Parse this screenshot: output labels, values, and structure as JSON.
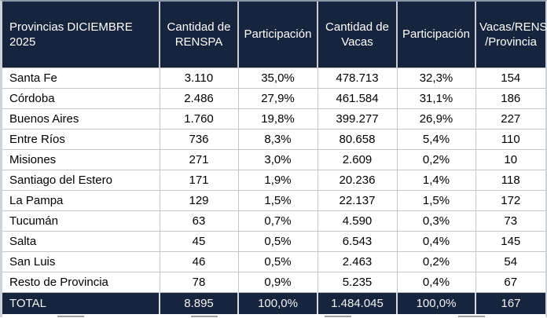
{
  "chart_data": {
    "type": "table",
    "title": "Provincias DICIEMBRE 2025",
    "columns": [
      "Provincias DICIEMBRE 2025",
      "Cantidad de RENSPA",
      "Participación",
      "Cantidad de Vacas",
      "Participación",
      "Vacas/RENSPA /Provincia"
    ],
    "rows": [
      [
        "Santa Fe",
        "3.110",
        "35,0%",
        "478.713",
        "32,3%",
        "154"
      ],
      [
        "Córdoba",
        "2.486",
        "27,9%",
        "461.584",
        "31,1%",
        "186"
      ],
      [
        "Buenos Aires",
        "1.760",
        "19,8%",
        "399.277",
        "26,9%",
        "227"
      ],
      [
        "Entre Ríos",
        "736",
        "8,3%",
        "80.658",
        "5,4%",
        "110"
      ],
      [
        "Misiones",
        "271",
        "3,0%",
        "2.609",
        "0,2%",
        "10"
      ],
      [
        "Santiago del Estero",
        "171",
        "1,9%",
        "20.236",
        "1,4%",
        "118"
      ],
      [
        "La Pampa",
        "129",
        "1,5%",
        "22.137",
        "1,5%",
        "172"
      ],
      [
        "Tucumán",
        "63",
        "0,7%",
        "4.590",
        "0,3%",
        "73"
      ],
      [
        "Salta",
        "45",
        "0,5%",
        "6.543",
        "0,4%",
        "145"
      ],
      [
        "San Luis",
        "46",
        "0,5%",
        "2.463",
        "0,2%",
        "54"
      ],
      [
        "Resto de Provincia",
        "78",
        "0,9%",
        "5.235",
        "0,4%",
        "67"
      ]
    ],
    "total_row": [
      "TOTAL",
      "8.895",
      "100,0%",
      "1.484.045",
      "100,0%",
      "167"
    ]
  },
  "colors": {
    "header_bg": "#16243E",
    "total_bg": "#16243E",
    "header_text": "#FFFFFF",
    "body_text": "#000000",
    "gridline": "#C6C6C6"
  }
}
